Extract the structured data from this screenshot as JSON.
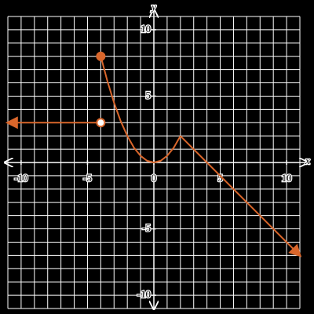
{
  "chart_data": {
    "type": "line",
    "x_label": "x",
    "y_label": "y",
    "xlim": [
      -11,
      11
    ],
    "ylim": [
      -11,
      11
    ],
    "xticks": [
      -10,
      -5,
      0,
      5,
      10
    ],
    "yticks": [
      -10,
      -5,
      5,
      10
    ],
    "grid": true,
    "series": [
      {
        "color": "#d9662b",
        "x": [
          -4,
          -11
        ],
        "values": [
          3,
          3
        ],
        "start": "open",
        "end": "arrow"
      },
      {
        "color": "#d9662b",
        "x": [
          -4,
          -3.5,
          -3,
          -2.5,
          -2,
          -1.5,
          -1,
          -0.5,
          0,
          0.5,
          1,
          1.5,
          2
        ],
        "values": [
          8,
          6.125,
          4.5,
          3.125,
          2,
          1.125,
          0.5,
          0.125,
          0,
          0.125,
          0.5,
          1.125,
          2
        ],
        "start": "closed",
        "end": "none"
      },
      {
        "color": "#d9662b",
        "x": [
          2,
          11
        ],
        "values": [
          2,
          -7
        ],
        "start": "none",
        "end": "arrow"
      }
    ]
  }
}
